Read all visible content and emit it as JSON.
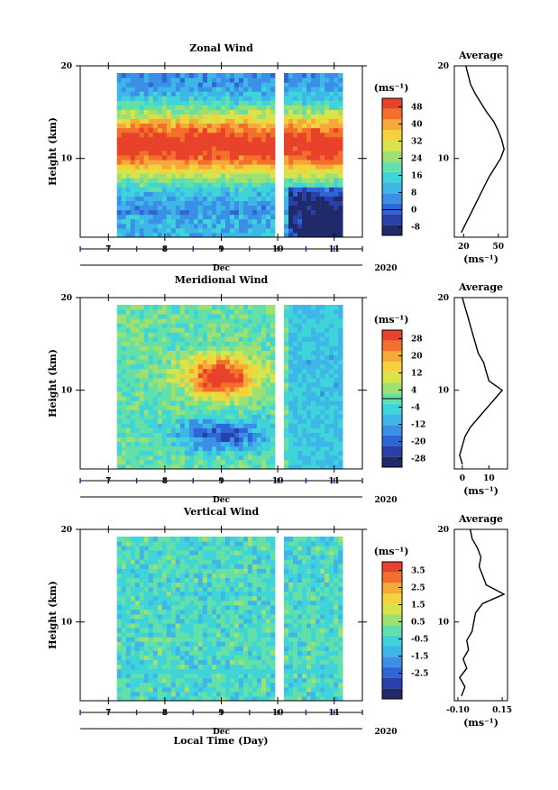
{
  "figure": {
    "xlabel": "Local Time (Day)",
    "month_label": "Dec",
    "year_label": "2020",
    "x_ticks": [
      "7",
      "8",
      "9",
      "10",
      "11"
    ],
    "y_label": "Height (km)",
    "y_ticks": [
      "20",
      "10"
    ],
    "unit_label": "(ms⁻¹)",
    "profile_title": "Average",
    "profile_unit": "(ms⁻¹)"
  },
  "chart_data": [
    {
      "type": "heatmap",
      "title": "Zonal Wind",
      "xlabel": "Dec",
      "ylabel": "Height (km)",
      "xlim": [
        6.5,
        11.5
      ],
      "ylim": [
        1.5,
        20
      ],
      "data_xlim": [
        7.15,
        11.15
      ],
      "gap_x": 10.0,
      "colorbar": {
        "ticks": [
          "48",
          "40",
          "32",
          "24",
          "16",
          "8",
          "0",
          "-8"
        ],
        "range": [
          -12,
          52
        ],
        "zero_line": 0
      },
      "profile": {
        "title": "Average",
        "xticks": [
          "20",
          "50"
        ],
        "xlim": [
          12,
          58
        ],
        "z": [
          2,
          3,
          4,
          5,
          6,
          7,
          8,
          9,
          10,
          11,
          12,
          13,
          14,
          15,
          16,
          17,
          18,
          19,
          20
        ],
        "val": [
          18,
          22,
          26,
          30,
          34,
          38,
          42,
          47,
          52,
          55,
          53,
          50,
          46,
          40,
          35,
          30,
          26,
          24,
          22
        ]
      }
    },
    {
      "type": "heatmap",
      "title": "Meridional Wind",
      "xlabel": "Dec",
      "ylabel": "Height (km)",
      "xlim": [
        6.5,
        11.5
      ],
      "ylim": [
        1.5,
        20
      ],
      "data_xlim": [
        7.15,
        11.15
      ],
      "gap_x": 10.0,
      "colorbar": {
        "ticks": [
          "28",
          "20",
          "12",
          "4",
          "-4",
          "-12",
          "-20",
          "-28"
        ],
        "range": [
          -32,
          32
        ],
        "zero_line": 0
      },
      "profile": {
        "title": "Average",
        "xticks": [
          "0",
          "10"
        ],
        "xlim": [
          -3,
          17
        ],
        "z": [
          2,
          3,
          4,
          5,
          6,
          7,
          8,
          9,
          10,
          11,
          12,
          13,
          14,
          15,
          16,
          17,
          18,
          19,
          20
        ],
        "val": [
          0,
          -1,
          0,
          1,
          3,
          6,
          9,
          12,
          15,
          10,
          9,
          8,
          6,
          5,
          4,
          3,
          2,
          1,
          0
        ]
      }
    },
    {
      "type": "heatmap",
      "title": "Vertical Wind",
      "xlabel": "Dec",
      "ylabel": "Height (km)",
      "xlim": [
        6.5,
        11.5
      ],
      "ylim": [
        1.5,
        20
      ],
      "data_xlim": [
        7.15,
        11.15
      ],
      "gap_x": 10.0,
      "colorbar": {
        "ticks": [
          "3.5",
          "2.5",
          "1.5",
          "0.5",
          "-0.5",
          "-1.5",
          "-2.5"
        ],
        "range": [
          -4,
          4
        ],
        "zero_line": null
      },
      "profile": {
        "title": "Average",
        "xticks": [
          "-0.10",
          "0.15"
        ],
        "xlim": [
          -0.12,
          0.18
        ],
        "z": [
          2,
          3,
          4,
          5,
          6,
          7,
          8,
          9,
          10,
          11,
          12,
          13,
          14,
          15,
          16,
          17,
          18,
          19,
          20
        ],
        "val": [
          -0.08,
          -0.06,
          -0.09,
          -0.05,
          -0.07,
          -0.04,
          -0.05,
          -0.02,
          -0.01,
          0.0,
          0.04,
          0.16,
          0.06,
          0.04,
          0.02,
          0.03,
          0.01,
          -0.02,
          -0.03
        ]
      }
    }
  ]
}
